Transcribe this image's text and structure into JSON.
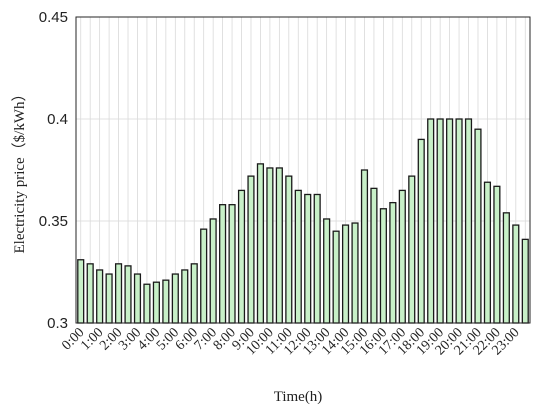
{
  "chart_data": {
    "type": "bar",
    "xlabel": "Time(h)",
    "ylabel": "Electricity price（$/kWh）",
    "ylim": [
      0.3,
      0.45
    ],
    "yticks": [
      "0.3",
      "0.35",
      "0.4",
      "0.45"
    ],
    "xtick_labels": [
      "0:00",
      "1:00",
      "2:00",
      "3:00",
      "4:00",
      "5:00",
      "6:00",
      "7:00",
      "8:00",
      "9:00",
      "10:00",
      "11:00",
      "12:00",
      "13:00",
      "14:00",
      "15:00",
      "16:00",
      "17:00",
      "18:00",
      "19:00",
      "20:00",
      "21:00",
      "22:00",
      "23:00"
    ],
    "bar_color": "#c8f0c8",
    "grid": true,
    "values": [
      0.331,
      0.329,
      0.326,
      0.324,
      0.329,
      0.328,
      0.324,
      0.319,
      0.32,
      0.321,
      0.324,
      0.326,
      0.329,
      0.346,
      0.351,
      0.358,
      0.358,
      0.365,
      0.372,
      0.378,
      0.376,
      0.376,
      0.372,
      0.365,
      0.363,
      0.363,
      0.351,
      0.345,
      0.348,
      0.349,
      0.375,
      0.366,
      0.356,
      0.359,
      0.365,
      0.372,
      0.39,
      0.4,
      0.4,
      0.4,
      0.4,
      0.4,
      0.395,
      0.369,
      0.367,
      0.354,
      0.348,
      0.341
    ]
  }
}
